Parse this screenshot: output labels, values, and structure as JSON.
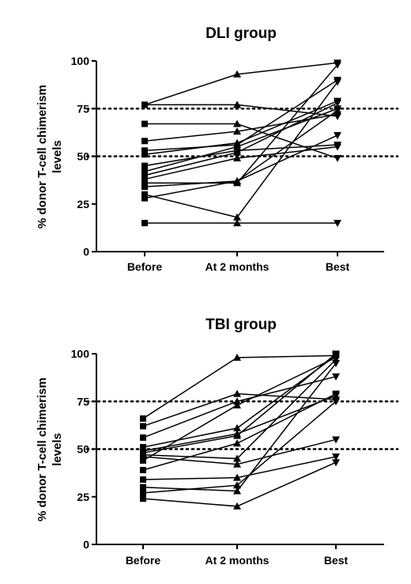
{
  "chart_data": [
    {
      "type": "line",
      "title": "DLI group",
      "ylabel": "% donor T-cell chimerism levels",
      "xlabel": "",
      "categories": [
        "Before",
        "At 2 months",
        "Best"
      ],
      "ylim": [
        0,
        100
      ],
      "yticks": [
        "0",
        "25",
        "50",
        "75",
        "100"
      ],
      "reference_lines": [
        50,
        75
      ],
      "legend": "none",
      "grid": false,
      "series": [
        {
          "values": [
            77,
            93,
            99
          ]
        },
        {
          "values": [
            77,
            77,
            71
          ]
        },
        {
          "values": [
            67,
            67,
            49
          ]
        },
        {
          "values": [
            58,
            63,
            72
          ]
        },
        {
          "values": [
            53,
            56,
            90
          ]
        },
        {
          "values": [
            51,
            57,
            79
          ]
        },
        {
          "values": [
            45,
            53,
            56
          ]
        },
        {
          "values": [
            42,
            55,
            75
          ]
        },
        {
          "values": [
            40,
            52,
            78
          ]
        },
        {
          "values": [
            38,
            49,
            55
          ]
        },
        {
          "values": [
            36,
            36,
            98
          ]
        },
        {
          "values": [
            34,
            37,
            61
          ]
        },
        {
          "values": [
            30,
            18,
            89
          ]
        },
        {
          "values": [
            28,
            37,
            74
          ]
        },
        {
          "values": [
            15,
            15,
            15
          ]
        }
      ]
    },
    {
      "type": "line",
      "title": "TBI group",
      "ylabel": "% donor T-cell chimerism levels",
      "xlabel": "",
      "categories": [
        "Before",
        "At 2 months",
        "Best"
      ],
      "ylim": [
        0,
        100
      ],
      "yticks": [
        "0",
        "25",
        "50",
        "75",
        "100"
      ],
      "reference_lines": [
        50,
        75
      ],
      "legend": "none",
      "grid": false,
      "series": [
        {
          "values": [
            66,
            98,
            99
          ]
        },
        {
          "values": [
            62,
            79,
            76
          ]
        },
        {
          "values": [
            56,
            75,
            88
          ]
        },
        {
          "values": [
            51,
            61,
            99
          ]
        },
        {
          "values": [
            49,
            58,
            78
          ]
        },
        {
          "values": [
            48,
            57,
            100
          ]
        },
        {
          "values": [
            47,
            45,
            97
          ]
        },
        {
          "values": [
            46,
            42,
            55
          ]
        },
        {
          "values": [
            44,
            73,
            98
          ]
        },
        {
          "values": [
            39,
            53,
            79
          ]
        },
        {
          "values": [
            34,
            35,
            46
          ]
        },
        {
          "values": [
            30,
            28,
            95
          ]
        },
        {
          "values": [
            27,
            31,
            75
          ]
        },
        {
          "values": [
            24,
            20,
            43
          ]
        }
      ]
    }
  ]
}
